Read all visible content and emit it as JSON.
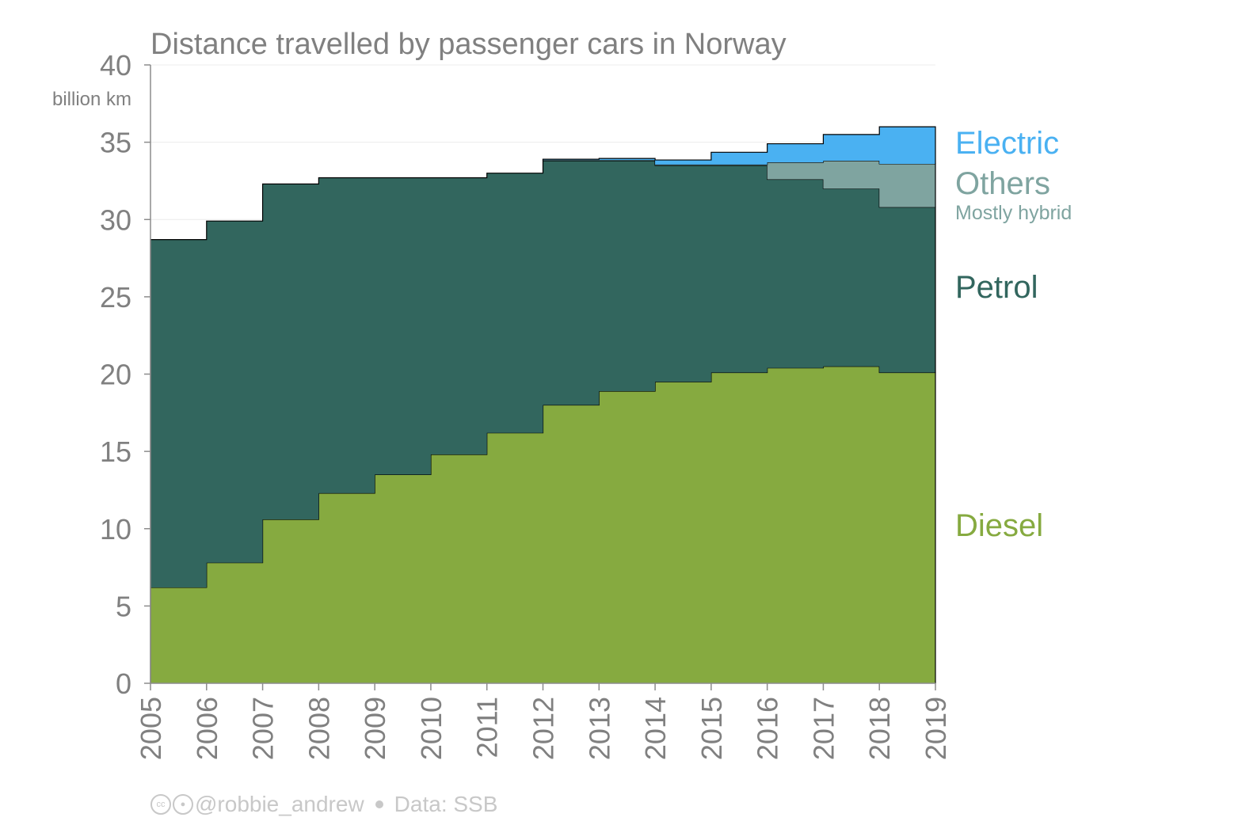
{
  "chart_data": {
    "type": "area",
    "title": "Distance travelled by passenger cars in Norway",
    "unit_label": "billion km",
    "x_ticks": [
      "2005",
      "2006",
      "2007",
      "2008",
      "2009",
      "2010",
      "2011",
      "2012",
      "2013",
      "2014",
      "2015",
      "2016",
      "2017",
      "2018",
      "2019"
    ],
    "ylim": [
      0,
      40
    ],
    "y_ticks": [
      0,
      5,
      10,
      15,
      20,
      25,
      30,
      35,
      40
    ],
    "grid": true,
    "step": true,
    "stacked": true,
    "categories": [
      "2005",
      "2006",
      "2007",
      "2008",
      "2009",
      "2010",
      "2011",
      "2012",
      "2013",
      "2014",
      "2015",
      "2016",
      "2017",
      "2018"
    ],
    "series": [
      {
        "name": "Diesel",
        "color": "#86aa40",
        "values": [
          6.2,
          7.8,
          10.6,
          12.3,
          13.5,
          14.8,
          16.2,
          18.0,
          18.9,
          19.5,
          20.1,
          20.4,
          20.5,
          20.1
        ]
      },
      {
        "name": "Petrol",
        "color": "#32665e",
        "values": [
          22.5,
          22.1,
          21.7,
          20.4,
          19.2,
          17.9,
          16.8,
          15.8,
          14.9,
          14.0,
          13.4,
          12.2,
          11.5,
          10.7
        ]
      },
      {
        "name": "Others",
        "color": "#7fa4a0",
        "values": [
          0,
          0,
          0,
          0,
          0,
          0,
          0,
          0.05,
          0.05,
          0.05,
          0.05,
          1.1,
          1.8,
          2.8
        ]
      },
      {
        "name": "Electric",
        "color": "#4ab1f2",
        "values": [
          0,
          0,
          0,
          0,
          0,
          0,
          0,
          0.05,
          0.1,
          0.3,
          0.8,
          1.2,
          1.7,
          2.4
        ]
      }
    ],
    "legend": [
      {
        "label": "Electric",
        "color": "#4ab1f2"
      },
      {
        "label": "Others",
        "color": "#7fa4a0",
        "sub": "Mostly hybrid"
      },
      {
        "label": "Petrol",
        "color": "#32665e"
      },
      {
        "label": "Diesel",
        "color": "#86aa40"
      }
    ],
    "legend_placement": "right"
  },
  "credit": {
    "handle": "@robbie_andrew",
    "source": "Data: SSB",
    "cc_icon": "cc-icon",
    "by_icon": "by-icon"
  }
}
